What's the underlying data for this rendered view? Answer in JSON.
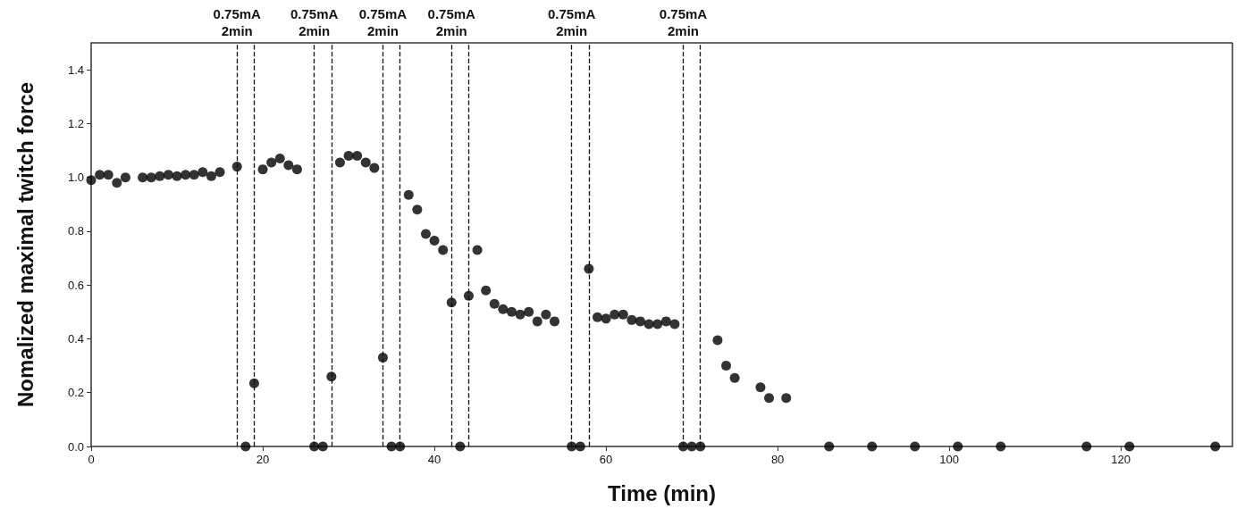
{
  "chart_data": {
    "type": "scatter",
    "xlabel": "Time (min)",
    "ylabel": "Nomalized maximal twitch force",
    "x": [
      0,
      1,
      2,
      3,
      4,
      6,
      7,
      8,
      9,
      10,
      11,
      12,
      13,
      14,
      15,
      17,
      18,
      19,
      20,
      21,
      22,
      23,
      24,
      26,
      27,
      28,
      29,
      30,
      31,
      32,
      33,
      34,
      35,
      36,
      37,
      38,
      39,
      40,
      41,
      42,
      43,
      44,
      45,
      46,
      47,
      48,
      49,
      50,
      51,
      52,
      53,
      54,
      56,
      57,
      58,
      59,
      60,
      61,
      62,
      63,
      64,
      65,
      66,
      67,
      68,
      69,
      70,
      71,
      73,
      74,
      75,
      78,
      79,
      81,
      86,
      91,
      96,
      101,
      106,
      116,
      121,
      131
    ],
    "series": [
      {
        "color": "#000000",
        "values": [
          0.99,
          1.01,
          1.01,
          0.98,
          1.0,
          1.0,
          1.0,
          1.005,
          1.01,
          1.005,
          1.01,
          1.01,
          1.02,
          1.005,
          1.02,
          1.04,
          0,
          0.235,
          1.03,
          1.055,
          1.07,
          1.045,
          1.03,
          0,
          0,
          0.26,
          1.055,
          1.08,
          1.08,
          1.055,
          1.035,
          0.33,
          0,
          0,
          0.935,
          0.88,
          0.79,
          0.765,
          0.73,
          0.535,
          0,
          0.56,
          0.73,
          0.58,
          0.53,
          0.51,
          0.5,
          0.49,
          0.5,
          0.465,
          0.49,
          0.465,
          0,
          0,
          0.66,
          0.48,
          0.475,
          0.49,
          0.49,
          0.47,
          0.465,
          0.455,
          0.455,
          0.465,
          0.455,
          0,
          0,
          0,
          0.395,
          0.3,
          0.255,
          0.22,
          0.18,
          0.18,
          0,
          0,
          0,
          0,
          0,
          0,
          0,
          0
        ]
      }
    ],
    "marker": "circle",
    "xlim": [
      0,
      133
    ],
    "xticks": [
      0,
      20,
      40,
      60,
      80,
      100,
      120
    ],
    "ylim": [
      0,
      1.5
    ],
    "yticks": [
      {
        "value": 0,
        "label": "0.0"
      },
      {
        "value": 0.2,
        "label": "0.2"
      },
      {
        "value": 0.4,
        "label": "0.4"
      },
      {
        "value": 0.6,
        "label": "0.6"
      },
      {
        "value": 0.8,
        "label": "0.8"
      },
      {
        "value": 1,
        "label": "1.0"
      },
      {
        "value": 1.2,
        "label": "1.2"
      },
      {
        "value": 1.4,
        "label": "1.4"
      }
    ],
    "ref_lines": [
      {
        "axis": "x",
        "value": 17,
        "label": "0.75mA\n2min",
        "line_style": "dashed"
      },
      {
        "axis": "x",
        "value": 19,
        "line_style": "dashed"
      },
      {
        "axis": "x",
        "value": 26,
        "label": "0.75mA\n2min",
        "line_style": "dashed"
      },
      {
        "axis": "x",
        "value": 28,
        "line_style": "dashed"
      },
      {
        "axis": "x",
        "value": 34,
        "label": "0.75mA\n2min",
        "line_style": "dashed"
      },
      {
        "axis": "x",
        "value": 36,
        "line_style": "dashed"
      },
      {
        "axis": "x",
        "value": 42,
        "label": "0.75mA\n2min",
        "line_style": "dashed"
      },
      {
        "axis": "x",
        "value": 44,
        "line_style": "dashed"
      },
      {
        "axis": "x",
        "value": 56,
        "label": "0.75mA\n2min",
        "line_style": "dashed"
      },
      {
        "axis": "x",
        "value": 58,
        "line_style": "dashed"
      },
      {
        "axis": "x",
        "value": 69,
        "label": "0.75mA\n2min",
        "line_style": "dashed"
      },
      {
        "axis": "x",
        "value": 71,
        "line_style": "dashed"
      }
    ],
    "grid": false
  }
}
